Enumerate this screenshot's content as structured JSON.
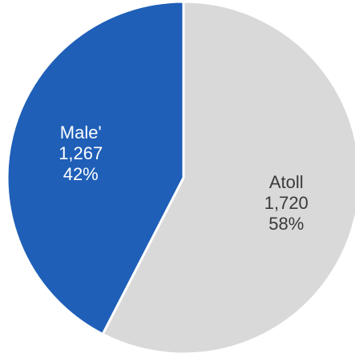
{
  "chart_data": {
    "type": "pie",
    "start_angle_deg": 0,
    "direction": "clockwise",
    "slices": [
      {
        "name": "Atoll",
        "value": 1720,
        "value_label": "1,720",
        "percent_label": "58%",
        "color": "#d9d9d9",
        "label_color": "#3a3a3a"
      },
      {
        "name": "Male'",
        "value": 1267,
        "value_label": "1,267",
        "percent_label": "42%",
        "color": "#1f5fb8",
        "label_color": "#ffffff"
      }
    ]
  }
}
